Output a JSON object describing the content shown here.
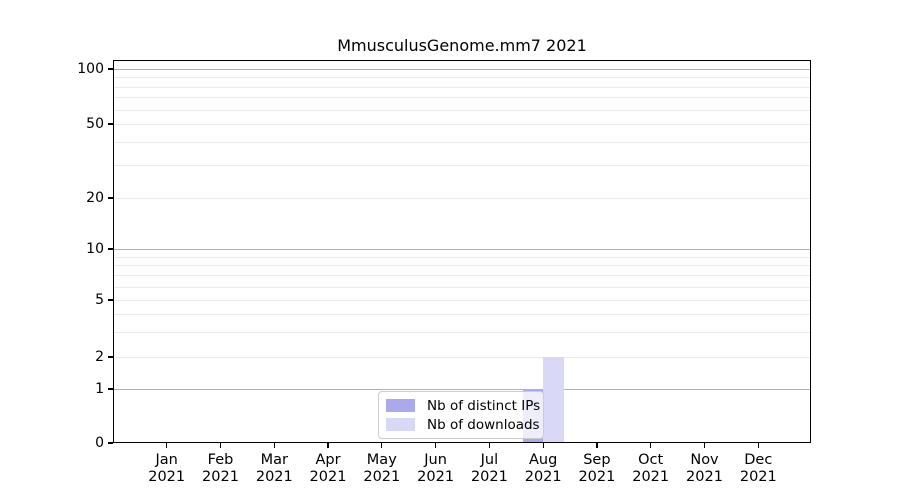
{
  "chart_data": {
    "type": "bar",
    "title": "MmusculusGenome.mm7 2021",
    "categories": [
      "Jan 2021",
      "Feb 2021",
      "Mar 2021",
      "Apr 2021",
      "May 2021",
      "Jun 2021",
      "Jul 2021",
      "Aug 2021",
      "Sep 2021",
      "Oct 2021",
      "Nov 2021",
      "Dec 2021"
    ],
    "series": [
      {
        "name": "Nb of distinct IPs",
        "color": "#a9a9ec",
        "values": [
          0,
          0,
          0,
          0,
          0,
          0,
          0,
          1,
          0,
          0,
          0,
          0
        ]
      },
      {
        "name": "Nb of downloads",
        "color": "#d9d9f7",
        "values": [
          0,
          0,
          0,
          0,
          0,
          0,
          0,
          2,
          0,
          0,
          0,
          0
        ]
      }
    ],
    "yticks": [
      100,
      50,
      20,
      10,
      5,
      2,
      1,
      0
    ],
    "ylim": [
      0,
      112
    ],
    "yscale": "symlog",
    "xlabel": "",
    "ylabel": "",
    "grid": true,
    "legend_position": "lower center, inside axes"
  },
  "colors": {
    "major_grid": "#b0b0b0",
    "minor_grid": "#eaeaea",
    "axis": "#000000",
    "legend_border": "#cccccc",
    "background": "#ffffff"
  }
}
